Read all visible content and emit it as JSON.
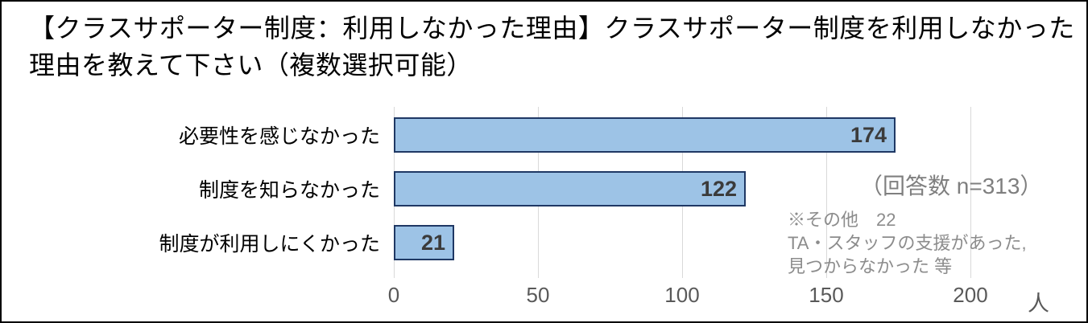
{
  "title": "【クラスサポーター制度：利用しなかった理由】クラスサポーター制度を利用しなかった理由を教えて下さい（複数選択可能）",
  "chart_data": {
    "type": "bar",
    "orientation": "horizontal",
    "categories": [
      "必要性を感じなかった",
      "制度を知らなかった",
      "制度が利用しにくかった"
    ],
    "values": [
      174,
      122,
      21
    ],
    "xlim": [
      0,
      200
    ],
    "x_ticks": [
      0,
      50,
      100,
      150,
      200
    ],
    "x_unit": "人",
    "grid": true,
    "legend": "none",
    "annotations": {
      "respondents": "（回答数 n=313）",
      "notes": [
        "※その他　22",
        "TA・スタッフの支援があった,",
        "見つからなかった 等"
      ]
    }
  },
  "colors": {
    "bar_fill": "#9DC3E6",
    "bar_border": "#1F3864",
    "gridline": "#D9D9D9",
    "tick_text": "#595959",
    "value_text": "#3B3B3B",
    "respondents_text": "#7F7F7F",
    "note_text": "#8C8C8C",
    "title_text": "#000000"
  }
}
